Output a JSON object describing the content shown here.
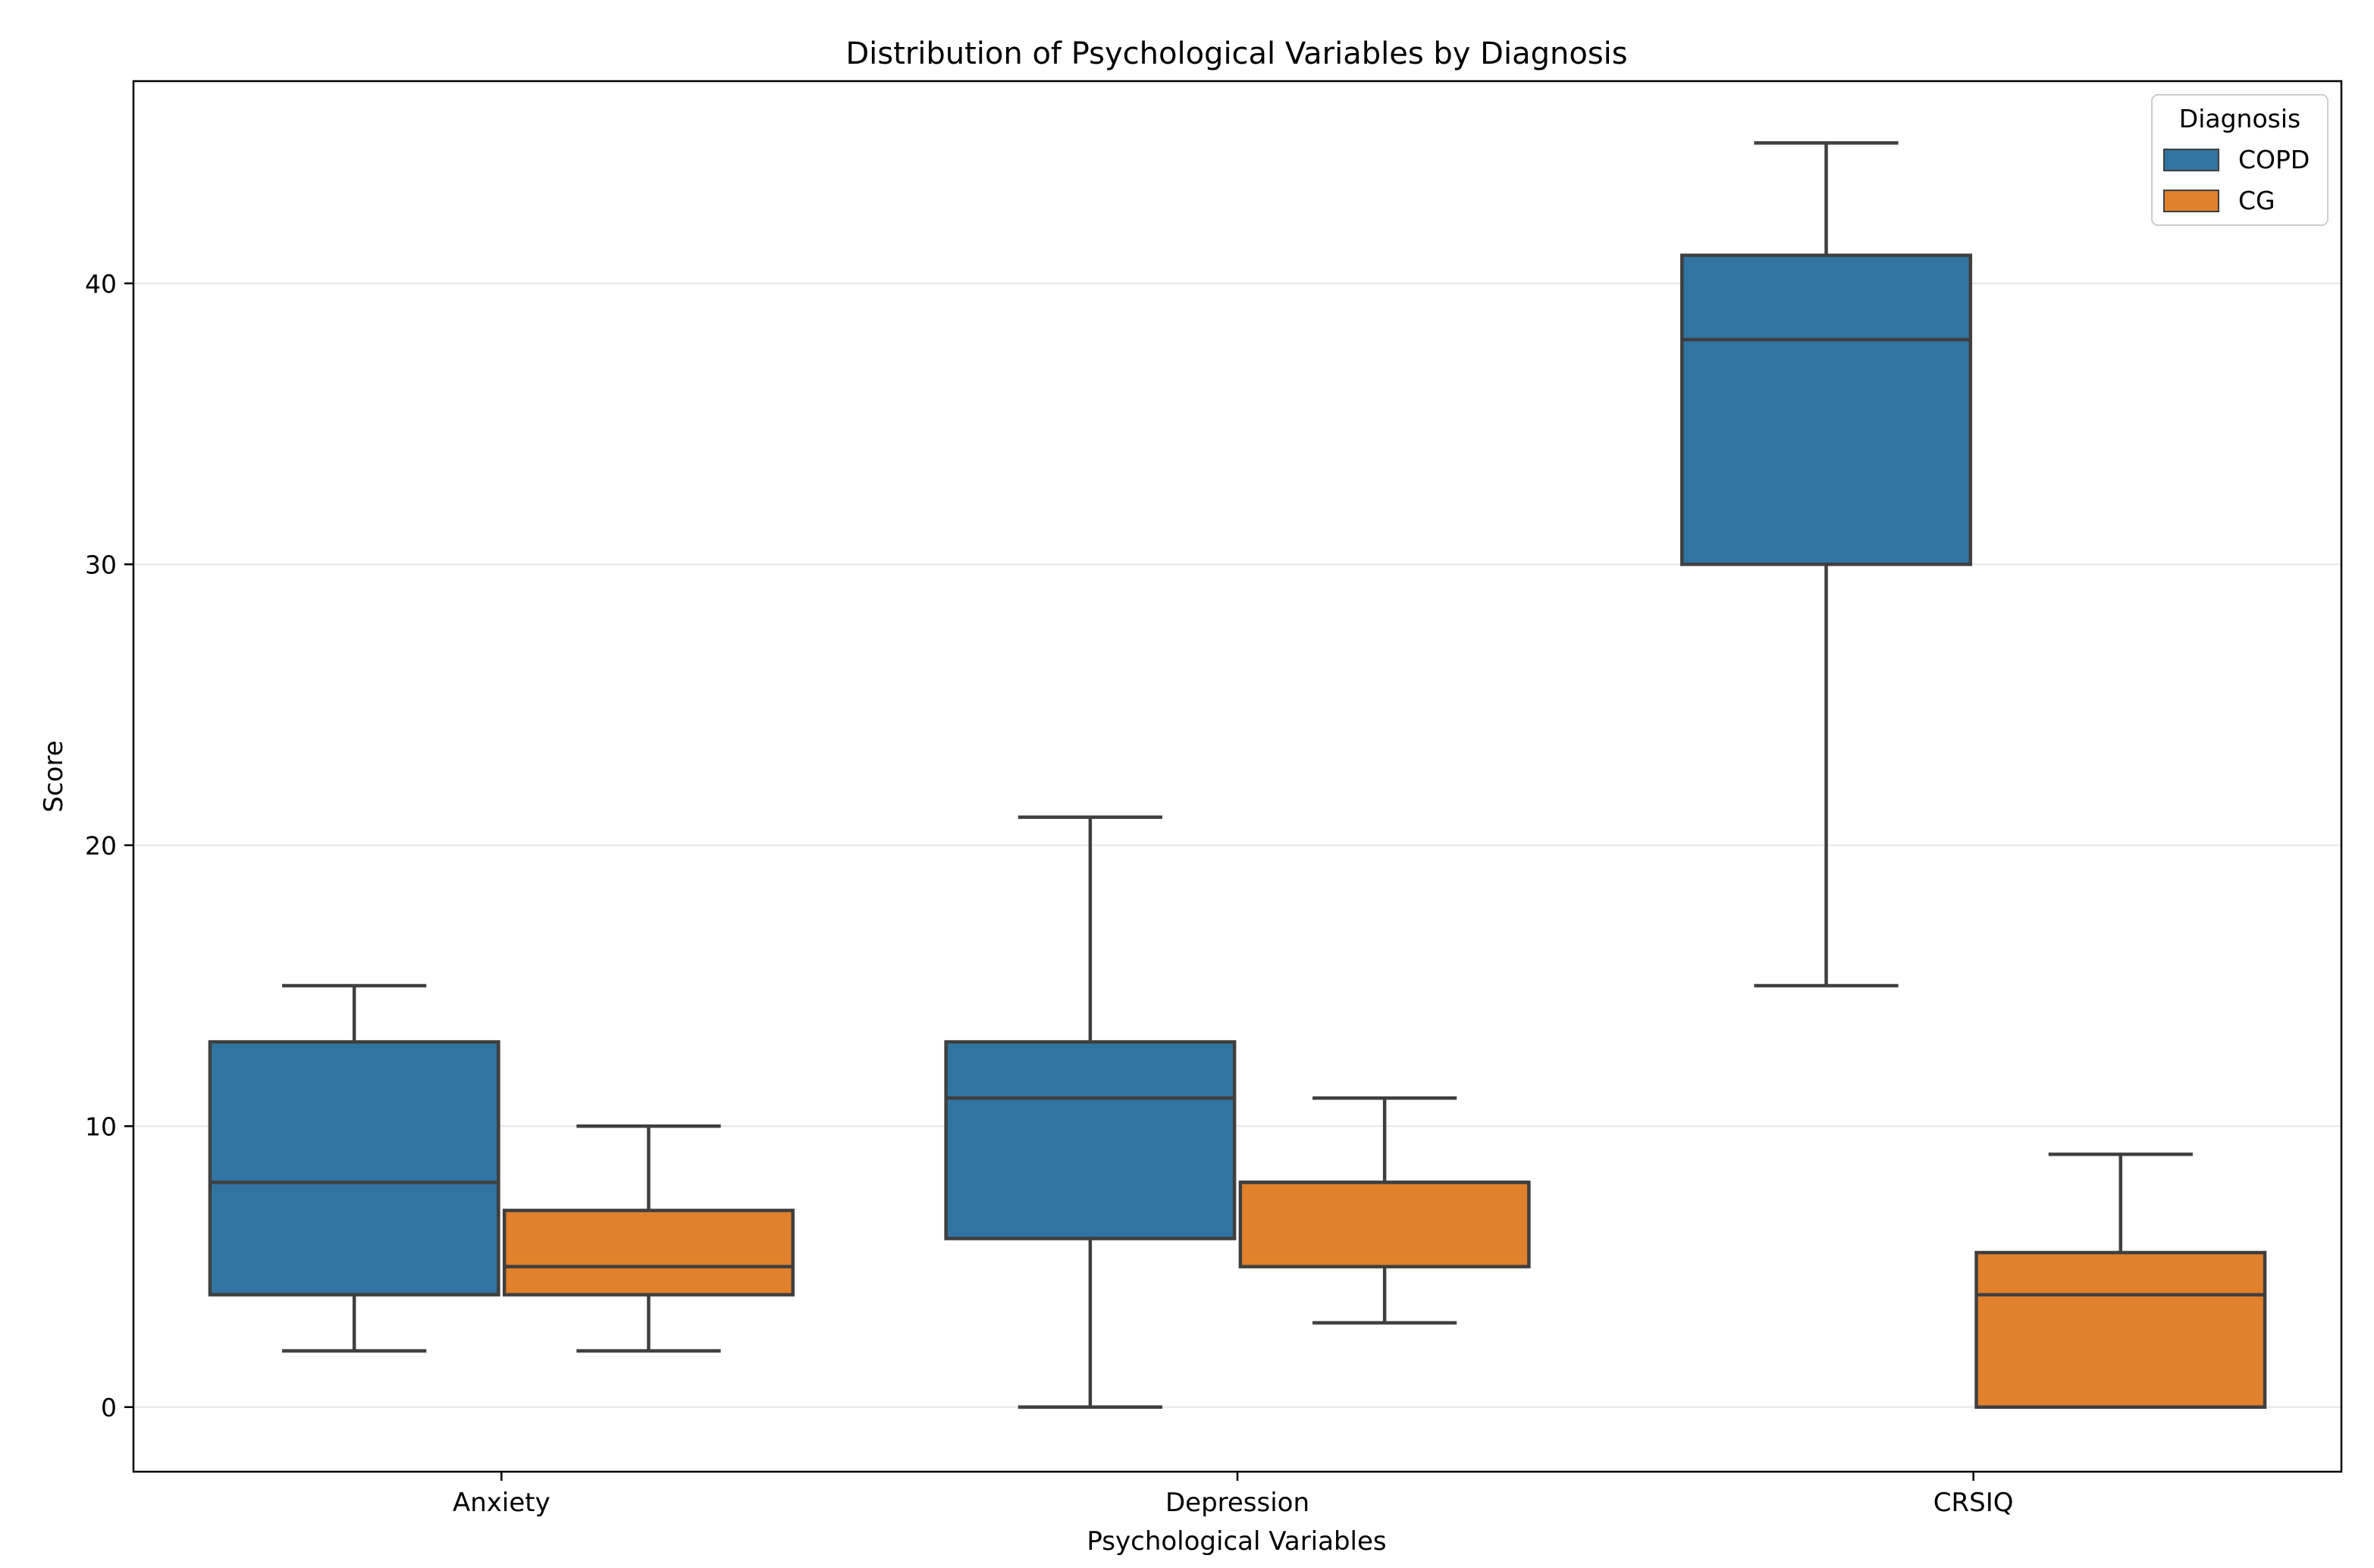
{
  "chart_data": {
    "type": "boxplot",
    "title": "Distribution of Psychological Variables by Diagnosis",
    "xlabel": "Psychological Variables",
    "ylabel": "Score",
    "ylim": [
      -2.3,
      47.2
    ],
    "yticks": [
      0,
      10,
      20,
      30,
      40
    ],
    "grid": "horizontal",
    "legend": {
      "title": "Diagnosis",
      "position": "top-right"
    },
    "categories": [
      "Anxiety",
      "Depression",
      "CRSIQ"
    ],
    "series": [
      {
        "name": "COPD",
        "color": "#3274a1",
        "boxes": [
          {
            "whisker_low": 2,
            "q1": 4,
            "median": 8,
            "q3": 13,
            "whisker_high": 15
          },
          {
            "whisker_low": 0,
            "q1": 6,
            "median": 11,
            "q3": 13,
            "whisker_high": 21
          },
          {
            "whisker_low": 15,
            "q1": 30,
            "median": 38,
            "q3": 41,
            "whisker_high": 45
          }
        ]
      },
      {
        "name": "CG",
        "color": "#e1812c",
        "boxes": [
          {
            "whisker_low": 2,
            "q1": 4,
            "median": 5,
            "q3": 7,
            "whisker_high": 10
          },
          {
            "whisker_low": 3,
            "q1": 5,
            "median": 8,
            "q3": 8,
            "whisker_high": 11
          },
          {
            "whisker_low": 0,
            "q1": 0,
            "median": 4,
            "q3": 5.5,
            "whisker_high": 9
          }
        ]
      }
    ],
    "line_color": "#3f3f3f",
    "grid_color": "#e6e6e6"
  }
}
